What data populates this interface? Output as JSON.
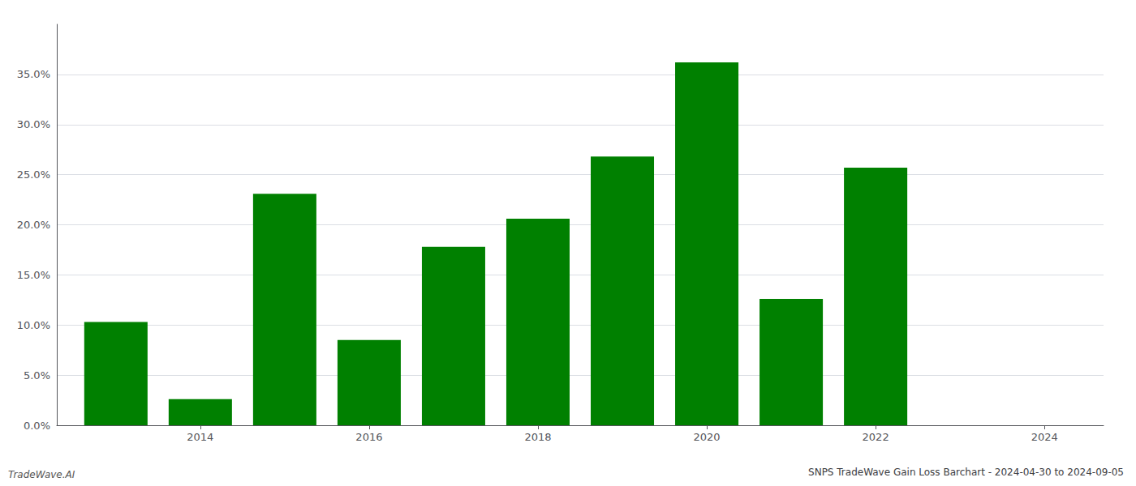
{
  "chart_data": {
    "type": "bar",
    "title": "SNPS TradeWave Gain Loss Barchart - 2024-04-30 to 2024-09-05",
    "annotations": [
      "TradeWave.AI"
    ],
    "x": [
      2013,
      2014,
      2015,
      2016,
      2017,
      2018,
      2019,
      2020,
      2021,
      2022
    ],
    "values": [
      0.103,
      0.026,
      0.231,
      0.085,
      0.178,
      0.206,
      0.268,
      0.362,
      0.126,
      0.257
    ],
    "color": "#008000",
    "xlim": [
      2012.3,
      2024.7
    ],
    "xticks": [
      2014,
      2016,
      2018,
      2020,
      2022,
      2024
    ],
    "ylim": [
      0.0,
      0.4
    ],
    "yticks": [
      {
        "value": 0.0,
        "label": "0.0%"
      },
      {
        "value": 0.05,
        "label": "5.0%"
      },
      {
        "value": 0.1,
        "label": "10.0%"
      },
      {
        "value": 0.15,
        "label": "15.0%"
      },
      {
        "value": 0.2,
        "label": "20.0%"
      },
      {
        "value": 0.25,
        "label": "25.0%"
      },
      {
        "value": 0.3,
        "label": "30.0%"
      },
      {
        "value": 0.35,
        "label": "35.0%"
      }
    ],
    "grid": true
  }
}
